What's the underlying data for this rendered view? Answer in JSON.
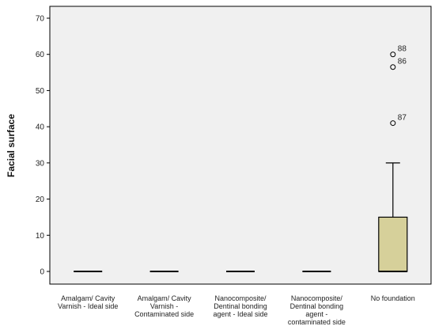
{
  "chart_data": {
    "type": "box",
    "ylabel": "Facial surface",
    "xlabel": "",
    "ylim": [
      0,
      70
    ],
    "yticks": [
      0,
      10,
      20,
      30,
      40,
      50,
      60,
      70
    ],
    "grid": false,
    "categories": [
      [
        "Amalgam/ Cavity",
        "Varnish - Ideal side"
      ],
      [
        "Amalgam/ Cavity",
        "Varnish -",
        "Contaminated side"
      ],
      [
        "Nanocomposite/",
        "Dentinal bonding",
        "agent - Ideal side"
      ],
      [
        "Nanocomposite/",
        "Dentinal bonding",
        "agent -",
        "contaminated side"
      ],
      [
        "No foundation"
      ]
    ],
    "boxes": [
      {
        "min": 0,
        "q1": 0,
        "median": 0,
        "q3": 0,
        "max": 0,
        "outliers": []
      },
      {
        "min": 0,
        "q1": 0,
        "median": 0,
        "q3": 0,
        "max": 0,
        "outliers": []
      },
      {
        "min": 0,
        "q1": 0,
        "median": 0,
        "q3": 0,
        "max": 0,
        "outliers": []
      },
      {
        "min": 0,
        "q1": 0,
        "median": 0,
        "q3": 0,
        "max": 0,
        "outliers": []
      },
      {
        "min": 0,
        "q1": 0,
        "median": 0,
        "q3": 15,
        "max": 30,
        "outliers": [
          {
            "value": 60,
            "label": "88"
          },
          {
            "value": 56.5,
            "label": "86"
          },
          {
            "value": 41,
            "label": "87"
          }
        ]
      }
    ],
    "colors": {
      "background": "#f0f0f0",
      "box_fill": "#d6d09a",
      "line": "#000000"
    }
  }
}
